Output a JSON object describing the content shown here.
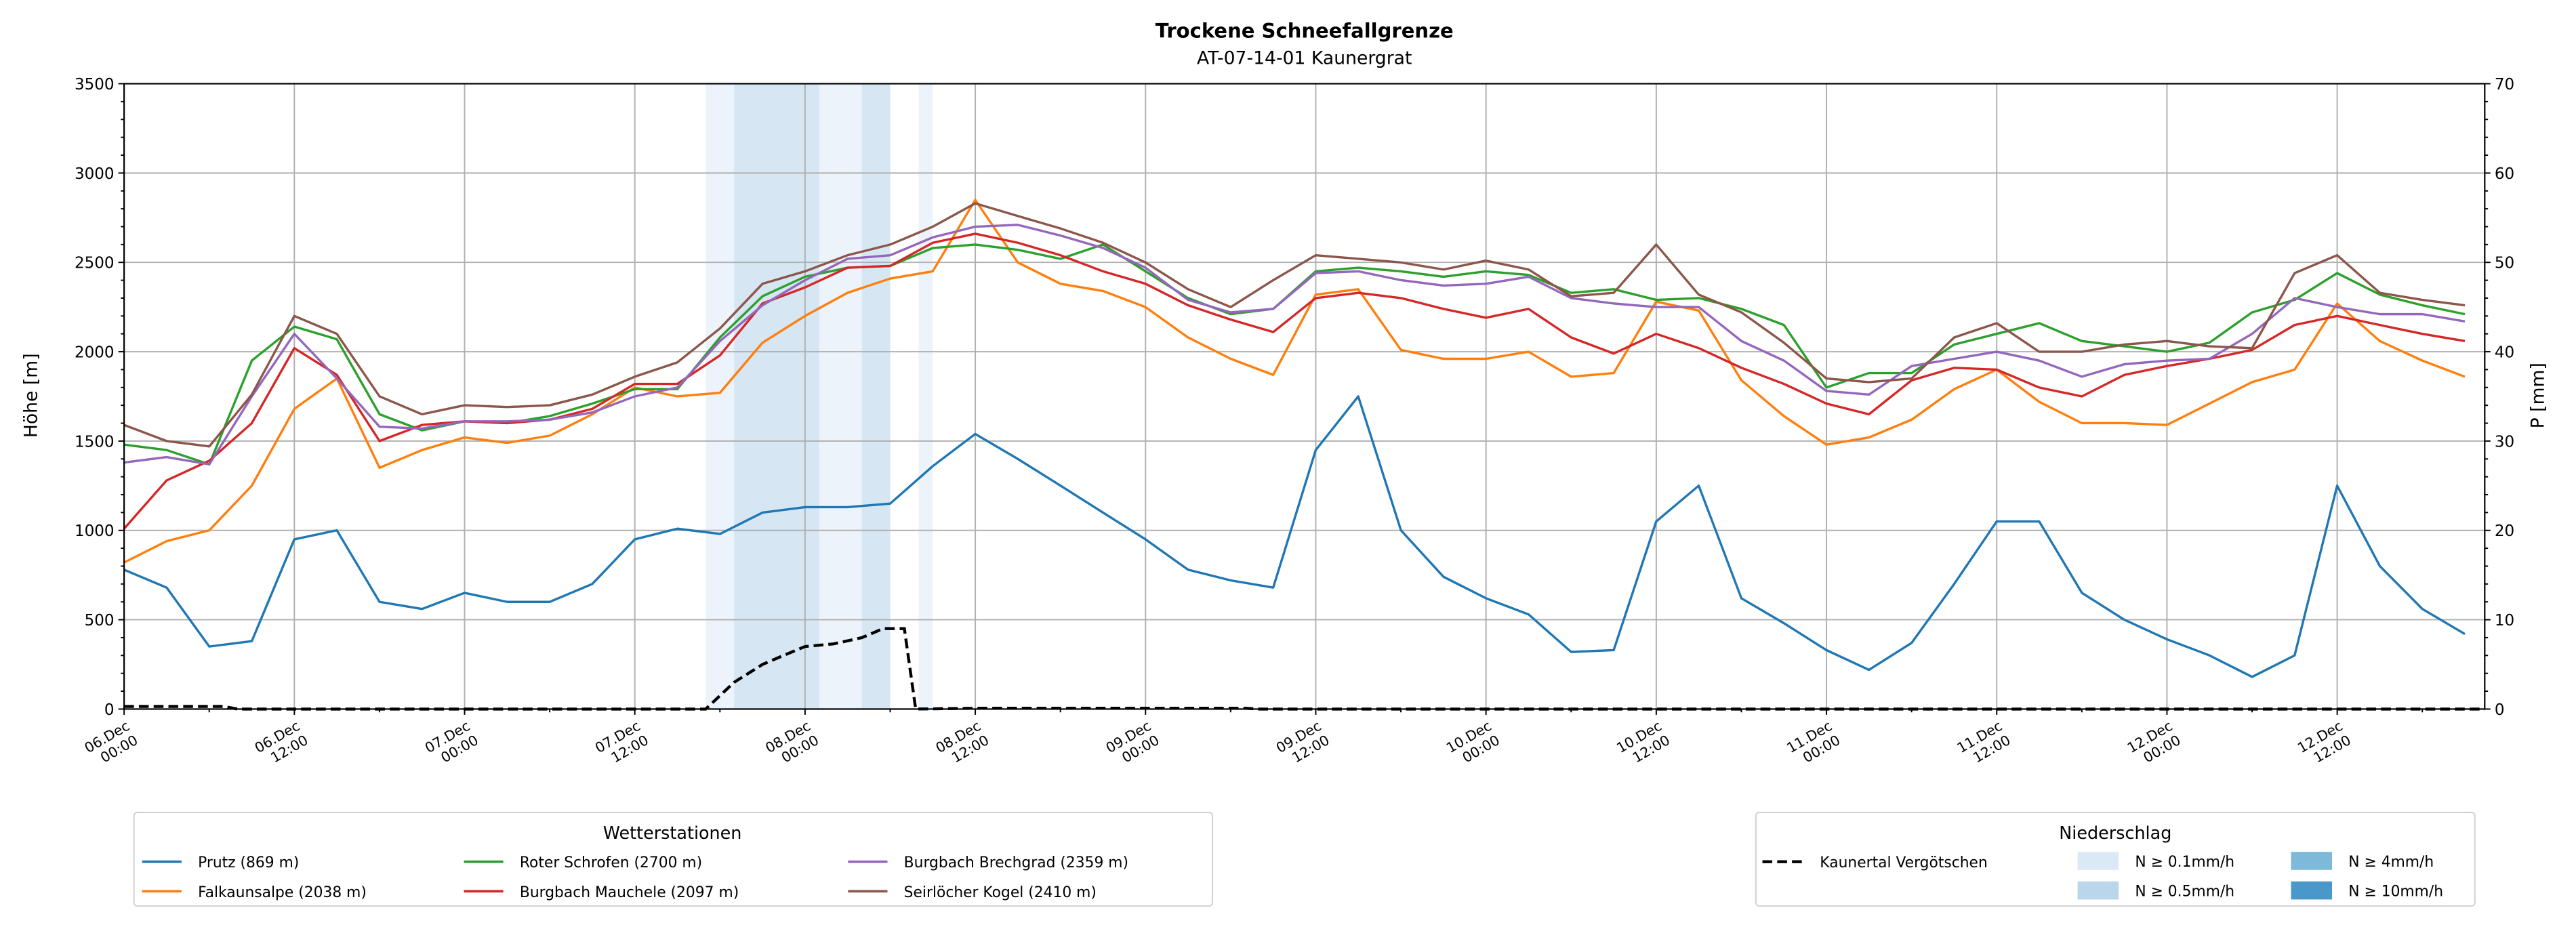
{
  "chart_data": {
    "type": "line",
    "title": "Trockene Schneefallgrenze",
    "subtitle": "AT-07-14-01 Kaunergrat",
    "ylabel": "Höhe [m]",
    "ylabel_right": "P [mm]",
    "ylim": [
      0,
      3500
    ],
    "ylim_right": [
      0,
      70
    ],
    "yticks": [
      "0",
      "500",
      "1000",
      "1500",
      "2000",
      "2500",
      "3000",
      "3500"
    ],
    "yticks_right": [
      "0",
      "10",
      "20",
      "30",
      "40",
      "50",
      "60",
      "70"
    ],
    "x_unit": "hours since 06.Dec 00:00",
    "xlim": [
      0,
      166.4
    ],
    "xticks": [
      {
        "l1": "06.Dec",
        "l2": "00:00"
      },
      {
        "l1": "06.Dec",
        "l2": "12:00"
      },
      {
        "l1": "07.Dec",
        "l2": "00:00"
      },
      {
        "l1": "07.Dec",
        "l2": "12:00"
      },
      {
        "l1": "08.Dec",
        "l2": "00:00"
      },
      {
        "l1": "08.Dec",
        "l2": "12:00"
      },
      {
        "l1": "09.Dec",
        "l2": "00:00"
      },
      {
        "l1": "09.Dec",
        "l2": "12:00"
      },
      {
        "l1": "10.Dec",
        "l2": "00:00"
      },
      {
        "l1": "10.Dec",
        "l2": "12:00"
      },
      {
        "l1": "11.Dec",
        "l2": "00:00"
      },
      {
        "l1": "11.Dec",
        "l2": "12:00"
      },
      {
        "l1": "12.Dec",
        "l2": "00:00"
      },
      {
        "l1": "12.Dec",
        "l2": "12:00"
      }
    ],
    "grid": true,
    "x_step_hours": 3,
    "series": [
      {
        "name": "Prutz (869 m)",
        "color": "#1f77b4",
        "values": [
          780,
          680,
          350,
          380,
          950,
          1000,
          600,
          560,
          650,
          600,
          600,
          700,
          950,
          1010,
          980,
          1100,
          1130,
          1130,
          1150,
          1360,
          1540,
          1400,
          1250,
          1100,
          950,
          780,
          720,
          680,
          1450,
          1750,
          1000,
          740,
          620,
          530,
          320,
          330,
          1050,
          1250,
          620,
          480,
          330,
          220,
          370,
          700,
          1050,
          1050,
          650,
          500,
          390,
          300,
          180,
          300,
          1250,
          800,
          560,
          420
        ]
      },
      {
        "name": "Falkaunsalpe (2038 m)",
        "color": "#ff7f0e",
        "values": [
          820,
          940,
          1000,
          1250,
          1680,
          1850,
          1350,
          1450,
          1520,
          1490,
          1530,
          1650,
          1800,
          1750,
          1770,
          2050,
          2200,
          2330,
          2410,
          2450,
          2850,
          2500,
          2380,
          2340,
          2250,
          2080,
          1960,
          1870,
          2320,
          2350,
          2010,
          1960,
          1960,
          2000,
          1860,
          1880,
          2280,
          2230,
          1840,
          1640,
          1480,
          1520,
          1620,
          1790,
          1900,
          1720,
          1600,
          1600,
          1590,
          1710,
          1830,
          1900,
          2270,
          2060,
          1950,
          1860
        ]
      },
      {
        "name": "Roter Schrofen (2700 m)",
        "color": "#2ca02c",
        "values": [
          1480,
          1450,
          1370,
          1950,
          2140,
          2070,
          1650,
          1560,
          1610,
          1600,
          1640,
          1710,
          1790,
          1790,
          2080,
          2310,
          2420,
          2470,
          2480,
          2580,
          2600,
          2570,
          2520,
          2600,
          2450,
          2300,
          2210,
          2240,
          2450,
          2470,
          2450,
          2420,
          2450,
          2430,
          2330,
          2350,
          2290,
          2300,
          2240,
          2150,
          1800,
          1880,
          1880,
          2040,
          2100,
          2160,
          2060,
          2030,
          2000,
          2050,
          2220,
          2290,
          2440,
          2320,
          2260,
          2210
        ]
      },
      {
        "name": "Burgbach Mauchele (2097 m)",
        "color": "#d62728",
        "values": [
          1010,
          1280,
          1390,
          1600,
          2020,
          1870,
          1500,
          1590,
          1610,
          1600,
          1620,
          1680,
          1820,
          1820,
          1980,
          2270,
          2360,
          2470,
          2480,
          2610,
          2660,
          2610,
          2540,
          2450,
          2380,
          2260,
          2180,
          2110,
          2300,
          2330,
          2300,
          2240,
          2190,
          2240,
          2080,
          1990,
          2100,
          2020,
          1910,
          1820,
          1710,
          1650,
          1840,
          1910,
          1900,
          1800,
          1750,
          1870,
          1920,
          1960,
          2010,
          2150,
          2200,
          2150,
          2100,
          2060
        ]
      },
      {
        "name": "Burgbach Brechgrad (2359 m)",
        "color": "#9467bd",
        "values": [
          1380,
          1410,
          1370,
          1750,
          2100,
          1850,
          1580,
          1570,
          1610,
          1610,
          1620,
          1660,
          1750,
          1800,
          2060,
          2260,
          2400,
          2520,
          2540,
          2640,
          2700,
          2710,
          2650,
          2580,
          2470,
          2290,
          2220,
          2240,
          2440,
          2450,
          2400,
          2370,
          2380,
          2420,
          2300,
          2270,
          2250,
          2250,
          2060,
          1950,
          1780,
          1760,
          1920,
          1960,
          2000,
          1950,
          1860,
          1930,
          1950,
          1960,
          2100,
          2300,
          2250,
          2210,
          2210,
          2170
        ]
      },
      {
        "name": "Seirlöcher Kogel (2410 m)",
        "color": "#8c564b",
        "values": [
          1590,
          1500,
          1470,
          1760,
          2200,
          2100,
          1750,
          1650,
          1700,
          1690,
          1700,
          1760,
          1860,
          1940,
          2130,
          2380,
          2450,
          2540,
          2600,
          2700,
          2830,
          2760,
          2690,
          2610,
          2500,
          2350,
          2250,
          2400,
          2540,
          2520,
          2500,
          2460,
          2510,
          2460,
          2310,
          2330,
          2600,
          2320,
          2220,
          2050,
          1850,
          1830,
          1850,
          2080,
          2160,
          2000,
          2000,
          2040,
          2060,
          2030,
          2020,
          2440,
          2540,
          2330,
          2290,
          2260
        ]
      }
    ],
    "precip_series": {
      "name": "Kaunertal Vergötschen",
      "color": "#000000",
      "axis": "right",
      "points": [
        [
          0,
          0.3
        ],
        [
          7,
          0.3
        ],
        [
          8,
          0
        ],
        [
          41,
          0
        ],
        [
          43,
          3
        ],
        [
          45,
          5
        ],
        [
          46.5,
          6
        ],
        [
          48,
          7
        ],
        [
          50,
          7.3
        ],
        [
          52,
          8
        ],
        [
          53.5,
          9
        ],
        [
          55,
          9
        ],
        [
          55.8,
          0
        ],
        [
          60,
          0.1
        ],
        [
          79,
          0.1
        ],
        [
          80,
          0
        ],
        [
          166.4,
          0
        ]
      ]
    },
    "precip_bands": [
      {
        "start": 41,
        "end": 43,
        "class": "N ≥ 0.1mm/h"
      },
      {
        "start": 43,
        "end": 49,
        "class": "N ≥ 0.5mm/h"
      },
      {
        "start": 49,
        "end": 52,
        "class": "N ≥ 0.1mm/h"
      },
      {
        "start": 52,
        "end": 54,
        "class": "N ≥ 0.5mm/h"
      },
      {
        "start": 56,
        "end": 57,
        "class": "N ≥ 0.1mm/h"
      }
    ],
    "legend_stations": {
      "title": "Wetterstationen",
      "placement": "bottom-left"
    },
    "legend_precip": {
      "title": "Niederschlag",
      "placement": "bottom-right",
      "classes": [
        {
          "label": "N ≥ 0.1mm/h",
          "color": "#dbe9f6",
          "band_color": "#ecf3fa"
        },
        {
          "label": "N ≥ 0.5mm/h",
          "color": "#bad6eb",
          "band_color": "#d6e6f3"
        },
        {
          "label": "N ≥ 4mm/h",
          "color": "#7fb9da",
          "band_color": "#7fb9da"
        },
        {
          "label": "N ≥ 10mm/h",
          "color": "#4a98c9",
          "band_color": "#4a98c9"
        }
      ]
    }
  }
}
